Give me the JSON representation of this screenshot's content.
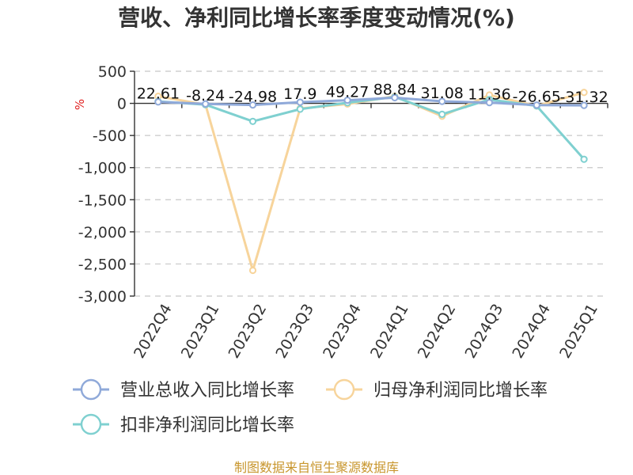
{
  "chart_data": {
    "type": "line",
    "title": "营收、净利同比增长率季度变动情况(%)",
    "unit": "%",
    "categories": [
      "2022Q4",
      "2023Q1",
      "2023Q2",
      "2023Q3",
      "2023Q4",
      "2024Q1",
      "2024Q2",
      "2024Q3",
      "2024Q4",
      "2025Q1"
    ],
    "series": [
      {
        "name": "营业总收入同比增长率",
        "color": "#8fa9d9",
        "values": [
          22.61,
          -8.24,
          -24.98,
          17.9,
          49.27,
          88.84,
          31.08,
          11.36,
          -26.65,
          -31.32
        ]
      },
      {
        "name": "归母净利润同比增长率",
        "color": "#f7d49b",
        "values": [
          110,
          -20,
          -2600,
          -80,
          -10,
          110,
          -200,
          130,
          -40,
          170
        ]
      },
      {
        "name": "扣非净利润同比增长率",
        "color": "#7fd0d0",
        "values": [
          30,
          -20,
          -280,
          -90,
          10,
          100,
          -170,
          60,
          -40,
          -870
        ]
      }
    ],
    "data_labels": [
      "22.61",
      "-8.24",
      "-24.98",
      "17.9",
      "49.27",
      "88.84",
      "31.08",
      "11.36",
      "-26.65",
      "-31.32"
    ],
    "y_ticks": [
      "500",
      "0",
      "-500",
      "-1,000",
      "-1,500",
      "-2,000",
      "-2,500",
      "-3,000"
    ],
    "ylim": [
      -3000,
      500
    ],
    "grid": true,
    "legend_position": "bottom"
  },
  "footer": {
    "source": "制图数据来自恒生聚源数据库"
  }
}
